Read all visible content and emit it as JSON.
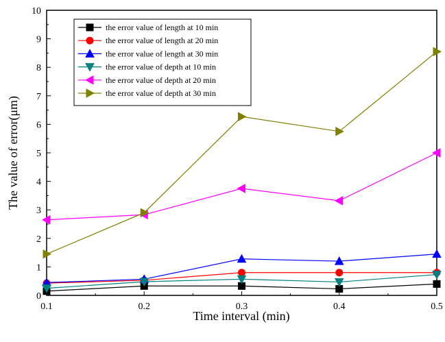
{
  "chart_data": {
    "type": "line",
    "xlabel": "Time interval (min)",
    "ylabel": "The value of error(μm)",
    "xlim": [
      0.1,
      0.5
    ],
    "ylim": [
      0,
      10
    ],
    "x_ticks": [
      0.1,
      0.2,
      0.3,
      0.4,
      0.5
    ],
    "y_ticks": [
      0,
      1,
      2,
      3,
      4,
      5,
      6,
      7,
      8,
      9,
      10
    ],
    "x_tick_labels": [
      "0.1",
      "0.2",
      "0.3",
      "0.4",
      "0.5"
    ],
    "y_tick_labels": [
      "0",
      "1",
      "2",
      "3",
      "4",
      "5",
      "6",
      "7",
      "8",
      "9",
      "10"
    ],
    "grid": false,
    "legend_position": "top-left",
    "x": [
      0.1,
      0.2,
      0.3,
      0.4,
      0.5
    ],
    "series": [
      {
        "name": "the error value of length at 10 min",
        "color": "#000000",
        "marker": "square",
        "values": [
          0.15,
          0.33,
          0.33,
          0.23,
          0.4
        ]
      },
      {
        "name": "the error value of length at 20 min",
        "color": "#ff0000",
        "marker": "circle",
        "values": [
          0.43,
          0.53,
          0.8,
          0.8,
          0.8
        ]
      },
      {
        "name": "the error value of length at 30 min",
        "color": "#0000ff",
        "marker": "triangle-up",
        "values": [
          0.45,
          0.57,
          1.28,
          1.2,
          1.45
        ]
      },
      {
        "name": "the error value of depth at 10 min",
        "color": "#008080",
        "marker": "triangle-down",
        "values": [
          0.25,
          0.48,
          0.57,
          0.47,
          0.73
        ]
      },
      {
        "name": "the error value of depth at 20 min",
        "color": "#ff00ff",
        "marker": "triangle-left",
        "values": [
          2.65,
          2.83,
          3.75,
          3.32,
          5.0
        ]
      },
      {
        "name": "the error value of depth at 30 min",
        "color": "#808000",
        "marker": "triangle-right",
        "values": [
          1.45,
          2.9,
          6.27,
          5.75,
          8.55
        ]
      }
    ]
  }
}
